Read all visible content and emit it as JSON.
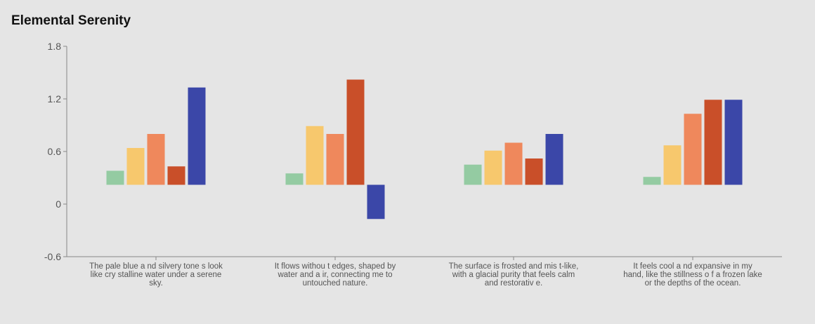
{
  "chart_data": {
    "type": "bar",
    "title": "Elemental Serenity",
    "xlabel": "",
    "ylabel": "",
    "ylim": [
      -0.6,
      1.8
    ],
    "yticks": [
      "1.8",
      "1.2",
      "0.6",
      "0",
      "-0.6"
    ],
    "baseline": 0.22,
    "categories": [
      [
        "The pale blue a nd silvery tone s look",
        "like cry stalline water under a serene",
        "sky."
      ],
      [
        "It flows withou t edges, shaped by",
        "water and a ir, connecting me to",
        "untouched nature."
      ],
      [
        "The surface is frosted and mis t-like,",
        "with a glacial purity that feels calm",
        "and restorativ e."
      ],
      [
        "It feels cool a nd expansive in my",
        "hand, like the stillness o f a frozen lake",
        "or the depths of the ocean."
      ]
    ],
    "series": [
      {
        "color": "#94cba2",
        "values": [
          0.38,
          0.35,
          0.45,
          0.31
        ]
      },
      {
        "color": "#f7c86d",
        "values": [
          0.64,
          0.89,
          0.61,
          0.67
        ]
      },
      {
        "color": "#ef885c",
        "values": [
          0.8,
          0.8,
          0.7,
          1.03
        ]
      },
      {
        "color": "#c94f29",
        "values": [
          0.43,
          1.42,
          0.52,
          1.19
        ]
      },
      {
        "color": "#3b47a8",
        "values": [
          1.33,
          -0.17,
          0.8,
          1.19
        ]
      }
    ],
    "grid": false,
    "legend": "none"
  }
}
